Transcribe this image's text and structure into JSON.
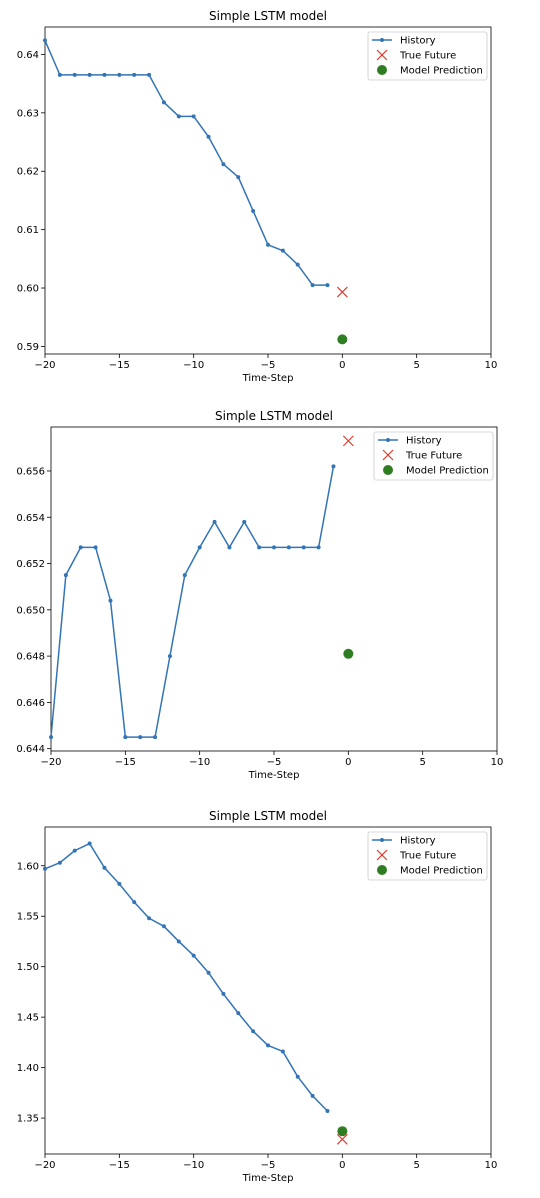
{
  "chart_data": [
    {
      "type": "line",
      "title": "Simple LSTM model",
      "xlabel": "Time-Step",
      "ylabel": "",
      "xlim": [
        -20,
        10
      ],
      "ylim": [
        0.5887,
        0.6447
      ],
      "xticks": [
        -20,
        -15,
        -10,
        -5,
        0,
        5,
        10
      ],
      "yticks": [
        0.59,
        0.6,
        0.61,
        0.62,
        0.63,
        0.64
      ],
      "ytick_decimals": 2,
      "legend_position": "top-right",
      "series": [
        {
          "name": "History",
          "kind": "line",
          "color": "#3274b5",
          "x": [
            -20,
            -19,
            -18,
            -17,
            -16,
            -15,
            -14,
            -13,
            -12,
            -11,
            -10,
            -9,
            -8,
            -7,
            -6,
            -5,
            -4,
            -3,
            -2,
            -1
          ],
          "y": [
            0.6424,
            0.6365,
            0.6365,
            0.6365,
            0.6365,
            0.6365,
            0.6365,
            0.6365,
            0.6318,
            0.6294,
            0.6294,
            0.6259,
            0.6212,
            0.619,
            0.6132,
            0.6074,
            0.6064,
            0.604,
            0.6005,
            0.6005
          ]
        },
        {
          "name": "True Future",
          "kind": "x-marker",
          "color": "#e03a2e",
          "x": [
            0
          ],
          "y": [
            0.5993
          ]
        },
        {
          "name": "Model Prediction",
          "kind": "dot",
          "color": "#2e7d22",
          "x": [
            0
          ],
          "y": [
            0.5912
          ]
        }
      ]
    },
    {
      "type": "line",
      "title": "Simple LSTM model",
      "xlabel": "Time-Step",
      "ylabel": "",
      "xlim": [
        -20,
        10
      ],
      "ylim": [
        0.6439,
        0.6579
      ],
      "xticks": [
        -20,
        -15,
        -10,
        -5,
        0,
        5,
        10
      ],
      "yticks": [
        0.644,
        0.646,
        0.648,
        0.65,
        0.652,
        0.654,
        0.656
      ],
      "ytick_decimals": 3,
      "legend_position": "top-right",
      "series": [
        {
          "name": "History",
          "kind": "line",
          "color": "#3274b5",
          "x": [
            -20,
            -19,
            -18,
            -17,
            -16,
            -15,
            -14,
            -13,
            -12,
            -11,
            -10,
            -9,
            -8,
            -7,
            -6,
            -5,
            -4,
            -3,
            -2,
            -1
          ],
          "y": [
            0.6445,
            0.6515,
            0.6527,
            0.6527,
            0.6504,
            0.6445,
            0.6445,
            0.6445,
            0.648,
            0.6515,
            0.6527,
            0.6538,
            0.6527,
            0.6538,
            0.6527,
            0.6527,
            0.6527,
            0.6527,
            0.6527,
            0.6562
          ]
        },
        {
          "name": "True Future",
          "kind": "x-marker",
          "color": "#e03a2e",
          "x": [
            0
          ],
          "y": [
            0.6573
          ]
        },
        {
          "name": "Model Prediction",
          "kind": "dot",
          "color": "#2e7d22",
          "x": [
            0
          ],
          "y": [
            0.6481
          ]
        }
      ]
    },
    {
      "type": "line",
      "title": "Simple LSTM model",
      "xlabel": "Time-Step",
      "ylabel": "",
      "xlim": [
        -20,
        10
      ],
      "ylim": [
        1.3144,
        1.6384
      ],
      "xticks": [
        -20,
        -15,
        -10,
        -5,
        0,
        5,
        10
      ],
      "yticks": [
        1.35,
        1.4,
        1.45,
        1.5,
        1.55,
        1.6
      ],
      "ytick_decimals": 2,
      "legend_position": "top-right",
      "series": [
        {
          "name": "History",
          "kind": "line",
          "color": "#3274b5",
          "x": [
            -20,
            -19,
            -18,
            -17,
            -16,
            -15,
            -14,
            -13,
            -12,
            -11,
            -10,
            -9,
            -8,
            -7,
            -6,
            -5,
            -4,
            -3,
            -2,
            -1
          ],
          "y": [
            1.597,
            1.603,
            1.615,
            1.622,
            1.598,
            1.582,
            1.564,
            1.548,
            1.54,
            1.525,
            1.511,
            1.494,
            1.473,
            1.454,
            1.436,
            1.422,
            1.416,
            1.391,
            1.372,
            1.357
          ]
        },
        {
          "name": "True Future",
          "kind": "x-marker",
          "color": "#e03a2e",
          "x": [
            0
          ],
          "y": [
            1.329
          ]
        },
        {
          "name": "Model Prediction",
          "kind": "dot",
          "color": "#2e7d22",
          "x": [
            0
          ],
          "y": [
            1.337
          ]
        }
      ]
    }
  ]
}
